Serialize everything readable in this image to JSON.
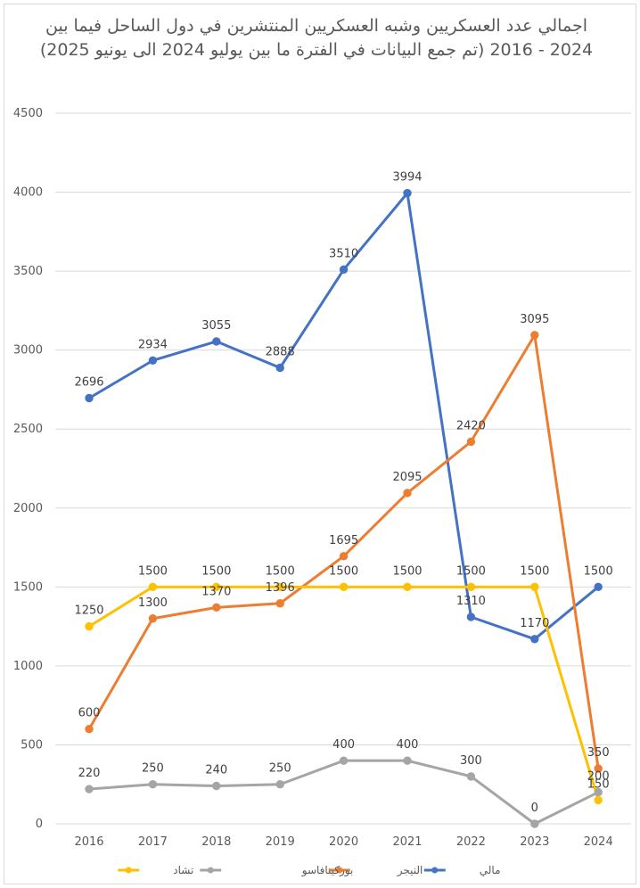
{
  "chart_data": {
    "type": "line",
    "title": "اجمالي عدد العسكريين وشبه العسكريين المنتشرين في دول الساحل فيما بين 2024 - 2016 (تم جمع البيانات في الفترة ما بين يوليو 2024 الى يونيو 2025)",
    "x": [
      "2016",
      "2017",
      "2018",
      "2019",
      "2020",
      "2021",
      "2022",
      "2023",
      "2024"
    ],
    "ylim": [
      0,
      4500
    ],
    "yticks": [
      "0",
      "500",
      "1000",
      "1500",
      "2000",
      "2500",
      "3000",
      "3500",
      "4000",
      "4500"
    ],
    "grid": true,
    "legend_position": "bottom",
    "series": [
      {
        "name": "مالي",
        "color": "#4472C4",
        "values": [
          2696,
          2934,
          3055,
          2888,
          3510,
          3994,
          1310,
          1170,
          1500
        ]
      },
      {
        "name": "النيجر",
        "color": "#ED7D31",
        "values": [
          600,
          1300,
          1370,
          1396,
          1695,
          2095,
          2420,
          3095,
          350
        ]
      },
      {
        "name": "بوركينافاسو",
        "color": "#A5A5A5",
        "values": [
          220,
          250,
          240,
          250,
          400,
          400,
          300,
          0,
          200
        ]
      },
      {
        "name": "تشاد",
        "color": "#FFC000",
        "values": [
          1250,
          1500,
          1500,
          1500,
          1500,
          1500,
          1500,
          1500,
          150
        ]
      }
    ]
  }
}
